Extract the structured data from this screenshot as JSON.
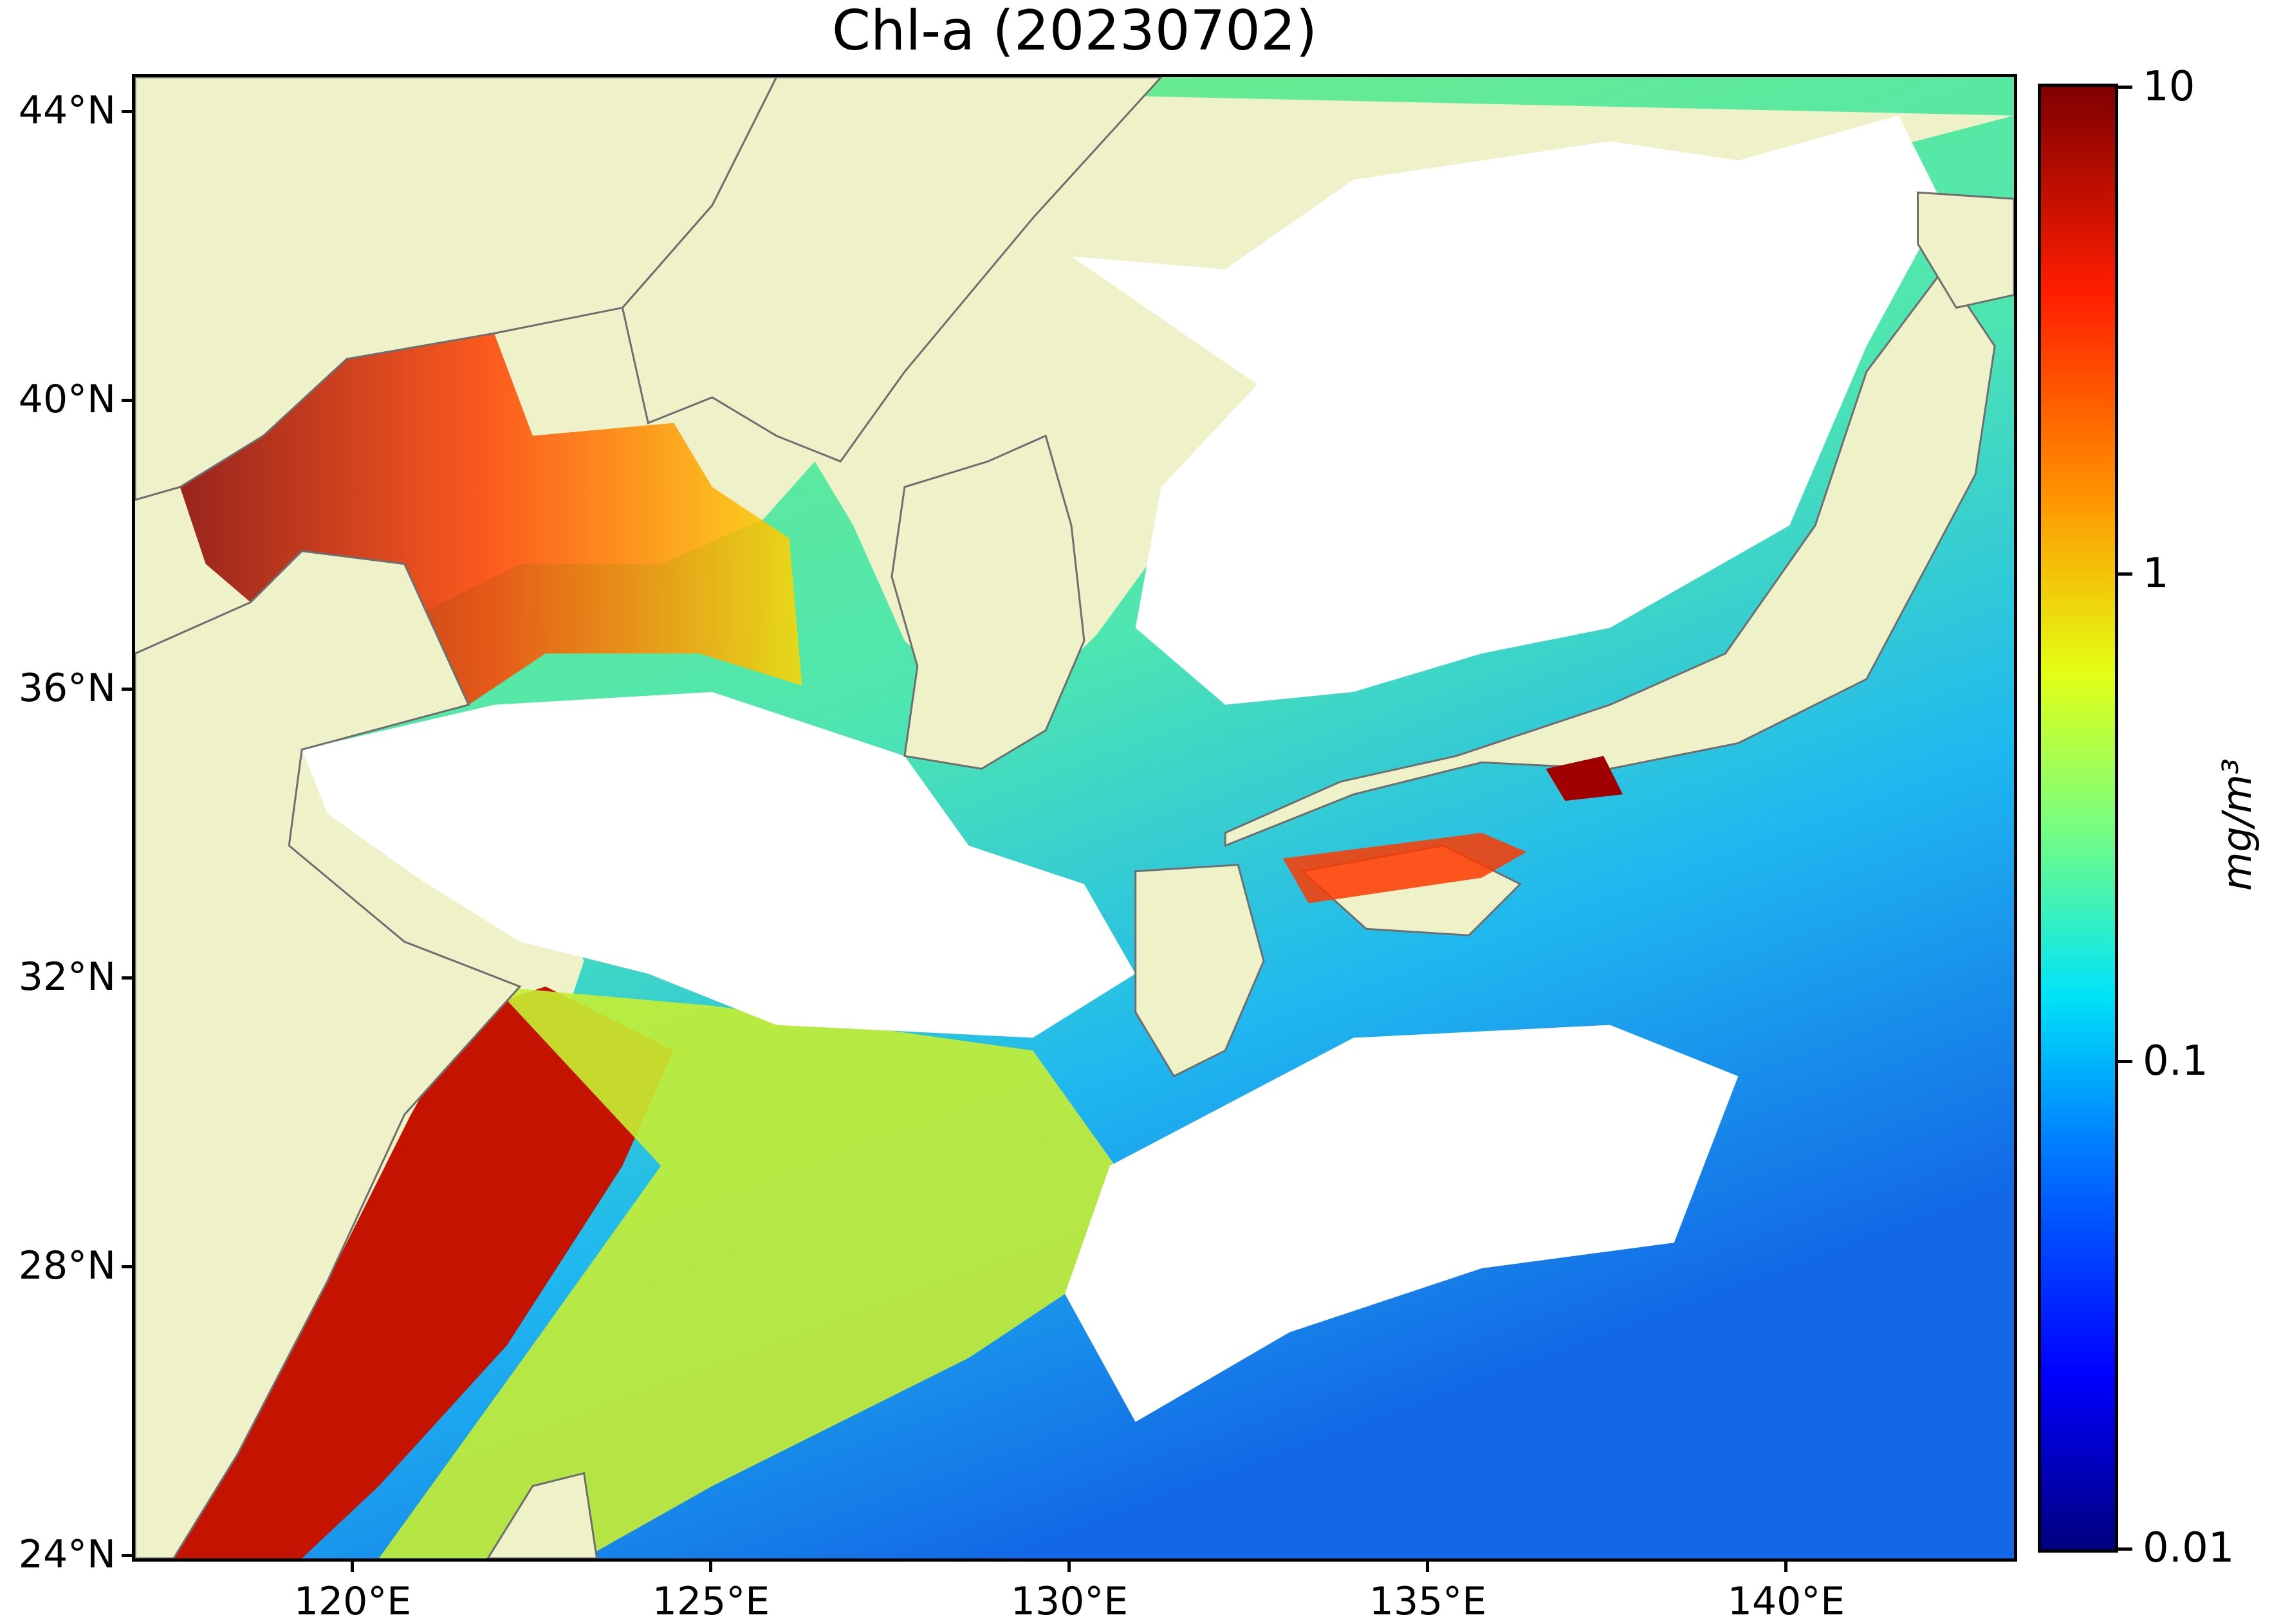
{
  "title": "Chl-a (20230702)",
  "map": {
    "lat_labels": [
      "44°N",
      "40°N",
      "36°N",
      "32°N",
      "28°N",
      "24°N"
    ],
    "lon_labels": [
      "120°E",
      "125°E",
      "130°E",
      "135°E",
      "140°E"
    ],
    "colors": {
      "land": "#eff2c8",
      "cloud_mask": "#ffffff",
      "coastline": "#6e6e6e"
    }
  },
  "colorbar": {
    "labels": [
      "10",
      "1",
      "0.1",
      "0.01"
    ],
    "unit": "mg/m³",
    "scale": "log",
    "range": [
      0.01,
      10
    ],
    "colormap": "jet"
  }
}
